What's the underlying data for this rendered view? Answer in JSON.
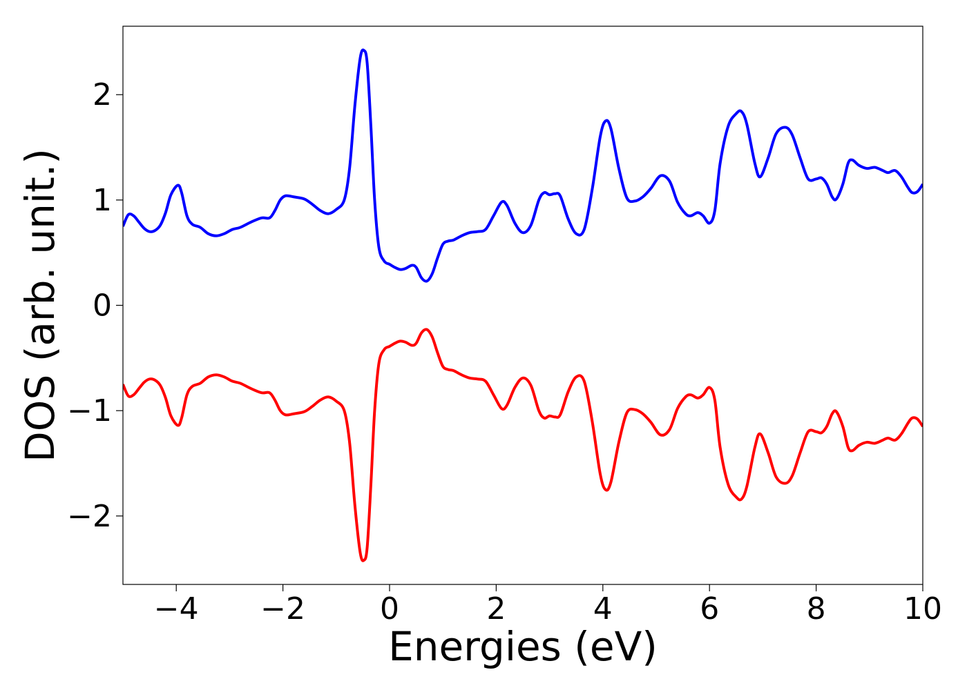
{
  "chart_data": {
    "type": "line",
    "title": "",
    "xlabel": "Energies (eV)",
    "ylabel": "DOS (arb. unit.)",
    "xlim": [
      -5,
      10
    ],
    "ylim": [
      -2.65,
      2.65
    ],
    "xticks": [
      -4,
      -2,
      0,
      2,
      4,
      6,
      8,
      10
    ],
    "xtick_labels": [
      "−4",
      "−2",
      "0",
      "2",
      "4",
      "6",
      "8",
      "10"
    ],
    "yticks": [
      -2,
      -1,
      0,
      1,
      2
    ],
    "ytick_labels": [
      "−2",
      "−1",
      "0",
      "1",
      "2"
    ],
    "grid": false,
    "legend": "none",
    "series": [
      {
        "color": "#0000ff",
        "points": [
          [
            -5.0,
            0.75
          ],
          [
            -4.9,
            0.86
          ],
          [
            -4.8,
            0.85
          ],
          [
            -4.7,
            0.79
          ],
          [
            -4.6,
            0.73
          ],
          [
            -4.5,
            0.7
          ],
          [
            -4.4,
            0.71
          ],
          [
            -4.3,
            0.76
          ],
          [
            -4.2,
            0.88
          ],
          [
            -4.1,
            1.05
          ],
          [
            -3.97,
            1.14
          ],
          [
            -3.9,
            1.07
          ],
          [
            -3.8,
            0.85
          ],
          [
            -3.7,
            0.77
          ],
          [
            -3.55,
            0.74
          ],
          [
            -3.4,
            0.68
          ],
          [
            -3.25,
            0.66
          ],
          [
            -3.1,
            0.68
          ],
          [
            -2.95,
            0.72
          ],
          [
            -2.8,
            0.74
          ],
          [
            -2.6,
            0.79
          ],
          [
            -2.4,
            0.83
          ],
          [
            -2.25,
            0.83
          ],
          [
            -2.15,
            0.9
          ],
          [
            -2.05,
            1.0
          ],
          [
            -1.95,
            1.04
          ],
          [
            -1.8,
            1.03
          ],
          [
            -1.6,
            1.01
          ],
          [
            -1.45,
            0.96
          ],
          [
            -1.3,
            0.9
          ],
          [
            -1.15,
            0.87
          ],
          [
            -1.0,
            0.91
          ],
          [
            -0.85,
            1.0
          ],
          [
            -0.75,
            1.3
          ],
          [
            -0.65,
            1.9
          ],
          [
            -0.55,
            2.35
          ],
          [
            -0.48,
            2.42
          ],
          [
            -0.42,
            2.3
          ],
          [
            -0.35,
            1.7
          ],
          [
            -0.28,
            1.0
          ],
          [
            -0.2,
            0.55
          ],
          [
            -0.1,
            0.42
          ],
          [
            0.0,
            0.39
          ],
          [
            0.1,
            0.36
          ],
          [
            0.2,
            0.34
          ],
          [
            0.3,
            0.35
          ],
          [
            0.42,
            0.38
          ],
          [
            0.5,
            0.36
          ],
          [
            0.6,
            0.26
          ],
          [
            0.7,
            0.23
          ],
          [
            0.8,
            0.3
          ],
          [
            0.9,
            0.45
          ],
          [
            1.0,
            0.58
          ],
          [
            1.1,
            0.61
          ],
          [
            1.2,
            0.62
          ],
          [
            1.35,
            0.66
          ],
          [
            1.5,
            0.69
          ],
          [
            1.65,
            0.7
          ],
          [
            1.8,
            0.72
          ],
          [
            1.95,
            0.85
          ],
          [
            2.1,
            0.98
          ],
          [
            2.2,
            0.95
          ],
          [
            2.35,
            0.78
          ],
          [
            2.5,
            0.69
          ],
          [
            2.65,
            0.76
          ],
          [
            2.8,
            1.0
          ],
          [
            2.9,
            1.07
          ],
          [
            3.0,
            1.05
          ],
          [
            3.1,
            1.06
          ],
          [
            3.2,
            1.04
          ],
          [
            3.35,
            0.82
          ],
          [
            3.5,
            0.68
          ],
          [
            3.65,
            0.72
          ],
          [
            3.8,
            1.1
          ],
          [
            3.95,
            1.6
          ],
          [
            4.05,
            1.75
          ],
          [
            4.15,
            1.68
          ],
          [
            4.3,
            1.3
          ],
          [
            4.45,
            1.02
          ],
          [
            4.6,
            0.99
          ],
          [
            4.75,
            1.03
          ],
          [
            4.9,
            1.11
          ],
          [
            5.08,
            1.23
          ],
          [
            5.25,
            1.18
          ],
          [
            5.4,
            0.98
          ],
          [
            5.55,
            0.87
          ],
          [
            5.65,
            0.85
          ],
          [
            5.78,
            0.88
          ],
          [
            5.88,
            0.85
          ],
          [
            6.0,
            0.78
          ],
          [
            6.1,
            0.9
          ],
          [
            6.2,
            1.35
          ],
          [
            6.35,
            1.7
          ],
          [
            6.5,
            1.82
          ],
          [
            6.6,
            1.84
          ],
          [
            6.7,
            1.72
          ],
          [
            6.85,
            1.35
          ],
          [
            6.95,
            1.22
          ],
          [
            7.1,
            1.4
          ],
          [
            7.25,
            1.63
          ],
          [
            7.42,
            1.69
          ],
          [
            7.55,
            1.62
          ],
          [
            7.7,
            1.4
          ],
          [
            7.85,
            1.2
          ],
          [
            8.0,
            1.2
          ],
          [
            8.1,
            1.21
          ],
          [
            8.2,
            1.15
          ],
          [
            8.3,
            1.03
          ],
          [
            8.38,
            1.01
          ],
          [
            8.5,
            1.15
          ],
          [
            8.6,
            1.35
          ],
          [
            8.68,
            1.38
          ],
          [
            8.8,
            1.33
          ],
          [
            8.95,
            1.3
          ],
          [
            9.1,
            1.31
          ],
          [
            9.25,
            1.28
          ],
          [
            9.35,
            1.26
          ],
          [
            9.48,
            1.28
          ],
          [
            9.6,
            1.22
          ],
          [
            9.72,
            1.12
          ],
          [
            9.8,
            1.07
          ],
          [
            9.9,
            1.08
          ],
          [
            10.0,
            1.15
          ]
        ]
      },
      {
        "color": "#ff0000",
        "points": [
          [
            -5.0,
            -0.75
          ],
          [
            -4.9,
            -0.86
          ],
          [
            -4.8,
            -0.85
          ],
          [
            -4.7,
            -0.79
          ],
          [
            -4.6,
            -0.73
          ],
          [
            -4.5,
            -0.7
          ],
          [
            -4.4,
            -0.71
          ],
          [
            -4.3,
            -0.76
          ],
          [
            -4.2,
            -0.88
          ],
          [
            -4.1,
            -1.05
          ],
          [
            -3.97,
            -1.14
          ],
          [
            -3.9,
            -1.07
          ],
          [
            -3.8,
            -0.85
          ],
          [
            -3.7,
            -0.77
          ],
          [
            -3.55,
            -0.74
          ],
          [
            -3.4,
            -0.68
          ],
          [
            -3.25,
            -0.66
          ],
          [
            -3.1,
            -0.68
          ],
          [
            -2.95,
            -0.72
          ],
          [
            -2.8,
            -0.74
          ],
          [
            -2.6,
            -0.79
          ],
          [
            -2.4,
            -0.83
          ],
          [
            -2.25,
            -0.83
          ],
          [
            -2.15,
            -0.9
          ],
          [
            -2.05,
            -1.0
          ],
          [
            -1.95,
            -1.04
          ],
          [
            -1.8,
            -1.03
          ],
          [
            -1.6,
            -1.01
          ],
          [
            -1.45,
            -0.96
          ],
          [
            -1.3,
            -0.9
          ],
          [
            -1.15,
            -0.87
          ],
          [
            -1.0,
            -0.91
          ],
          [
            -0.85,
            -1.0
          ],
          [
            -0.75,
            -1.3
          ],
          [
            -0.65,
            -1.9
          ],
          [
            -0.55,
            -2.35
          ],
          [
            -0.48,
            -2.42
          ],
          [
            -0.42,
            -2.3
          ],
          [
            -0.35,
            -1.7
          ],
          [
            -0.28,
            -1.0
          ],
          [
            -0.2,
            -0.55
          ],
          [
            -0.1,
            -0.42
          ],
          [
            0.0,
            -0.39
          ],
          [
            0.1,
            -0.36
          ],
          [
            0.2,
            -0.34
          ],
          [
            0.3,
            -0.35
          ],
          [
            0.42,
            -0.38
          ],
          [
            0.5,
            -0.36
          ],
          [
            0.6,
            -0.26
          ],
          [
            0.7,
            -0.23
          ],
          [
            0.8,
            -0.3
          ],
          [
            0.9,
            -0.45
          ],
          [
            1.0,
            -0.58
          ],
          [
            1.1,
            -0.61
          ],
          [
            1.2,
            -0.62
          ],
          [
            1.35,
            -0.66
          ],
          [
            1.5,
            -0.69
          ],
          [
            1.65,
            -0.7
          ],
          [
            1.8,
            -0.72
          ],
          [
            1.95,
            -0.85
          ],
          [
            2.1,
            -0.98
          ],
          [
            2.2,
            -0.95
          ],
          [
            2.35,
            -0.78
          ],
          [
            2.5,
            -0.69
          ],
          [
            2.65,
            -0.76
          ],
          [
            2.8,
            -1.0
          ],
          [
            2.9,
            -1.07
          ],
          [
            3.0,
            -1.05
          ],
          [
            3.1,
            -1.06
          ],
          [
            3.2,
            -1.04
          ],
          [
            3.35,
            -0.82
          ],
          [
            3.5,
            -0.68
          ],
          [
            3.65,
            -0.72
          ],
          [
            3.8,
            -1.1
          ],
          [
            3.95,
            -1.6
          ],
          [
            4.05,
            -1.75
          ],
          [
            4.15,
            -1.68
          ],
          [
            4.3,
            -1.3
          ],
          [
            4.45,
            -1.02
          ],
          [
            4.6,
            -0.99
          ],
          [
            4.75,
            -1.03
          ],
          [
            4.9,
            -1.11
          ],
          [
            5.08,
            -1.23
          ],
          [
            5.25,
            -1.18
          ],
          [
            5.4,
            -0.98
          ],
          [
            5.55,
            -0.87
          ],
          [
            5.65,
            -0.85
          ],
          [
            5.78,
            -0.88
          ],
          [
            5.88,
            -0.85
          ],
          [
            6.0,
            -0.78
          ],
          [
            6.1,
            -0.9
          ],
          [
            6.2,
            -1.35
          ],
          [
            6.35,
            -1.7
          ],
          [
            6.5,
            -1.82
          ],
          [
            6.6,
            -1.84
          ],
          [
            6.7,
            -1.72
          ],
          [
            6.85,
            -1.35
          ],
          [
            6.95,
            -1.22
          ],
          [
            7.1,
            -1.4
          ],
          [
            7.25,
            -1.63
          ],
          [
            7.42,
            -1.69
          ],
          [
            7.55,
            -1.62
          ],
          [
            7.7,
            -1.4
          ],
          [
            7.85,
            -1.2
          ],
          [
            8.0,
            -1.2
          ],
          [
            8.1,
            -1.21
          ],
          [
            8.2,
            -1.15
          ],
          [
            8.3,
            -1.03
          ],
          [
            8.38,
            -1.01
          ],
          [
            8.5,
            -1.15
          ],
          [
            8.6,
            -1.35
          ],
          [
            8.68,
            -1.38
          ],
          [
            8.8,
            -1.33
          ],
          [
            8.95,
            -1.3
          ],
          [
            9.1,
            -1.31
          ],
          [
            9.25,
            -1.28
          ],
          [
            9.35,
            -1.26
          ],
          [
            9.48,
            -1.28
          ],
          [
            9.6,
            -1.22
          ],
          [
            9.72,
            -1.12
          ],
          [
            9.8,
            -1.07
          ],
          [
            9.9,
            -1.08
          ],
          [
            10.0,
            -1.15
          ]
        ]
      }
    ]
  }
}
